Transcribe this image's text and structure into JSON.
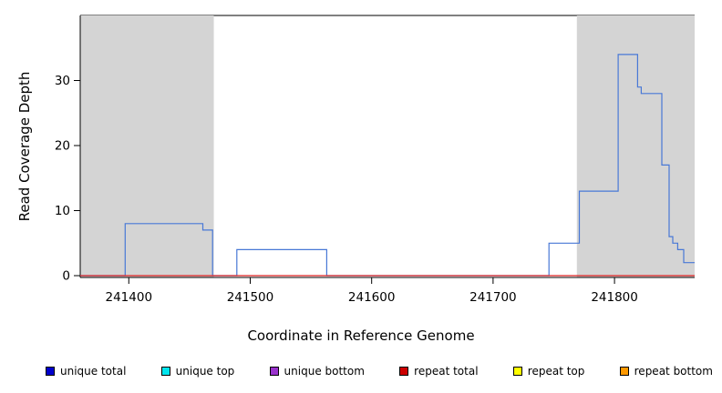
{
  "chart_data": {
    "type": "line",
    "title": "",
    "xlabel": "Coordinate in Reference Genome",
    "ylabel": "Read Coverage Depth",
    "xlim": [
      241360,
      241866
    ],
    "ylim": [
      0,
      40
    ],
    "xticks": [
      241400,
      241500,
      241600,
      241700,
      241800
    ],
    "yticks": [
      0,
      10,
      20,
      30
    ],
    "grid": false,
    "legend_position": "bottom",
    "shaded_regions": [
      {
        "x0": 241360,
        "x1": 241470,
        "color": "#d4d4d4"
      },
      {
        "x0": 241769,
        "x1": 241866,
        "color": "#d4d4d4"
      }
    ],
    "series": [
      {
        "name": "unique-total-coverage",
        "color": "#4878d6",
        "type": "step",
        "points": [
          [
            241360,
            0
          ],
          [
            241397,
            0
          ],
          [
            241397,
            8
          ],
          [
            241461,
            8
          ],
          [
            241461,
            7
          ],
          [
            241469,
            7
          ],
          [
            241469,
            0
          ],
          [
            241489,
            0
          ],
          [
            241489,
            4
          ],
          [
            241563,
            4
          ],
          [
            241563,
            0
          ],
          [
            241746,
            0
          ],
          [
            241746,
            5
          ],
          [
            241771,
            5
          ],
          [
            241771,
            13
          ],
          [
            241803,
            13
          ],
          [
            241803,
            34
          ],
          [
            241819,
            34
          ],
          [
            241819,
            29
          ],
          [
            241822,
            29
          ],
          [
            241822,
            28
          ],
          [
            241839,
            28
          ],
          [
            241839,
            17
          ],
          [
            241845,
            17
          ],
          [
            241845,
            6
          ],
          [
            241848,
            6
          ],
          [
            241848,
            5
          ],
          [
            241852,
            5
          ],
          [
            241852,
            4
          ],
          [
            241857,
            4
          ],
          [
            241857,
            2
          ],
          [
            241866,
            2
          ]
        ]
      },
      {
        "name": "repeat-total-coverage",
        "color": "#dd2222",
        "type": "step",
        "points": [
          [
            241360,
            0
          ],
          [
            241866,
            0
          ]
        ]
      }
    ],
    "legend": [
      {
        "label": "unique total",
        "color": "#0000cd"
      },
      {
        "label": "unique top",
        "color": "#00e5ee"
      },
      {
        "label": "unique bottom",
        "color": "#9932cc"
      },
      {
        "label": "repeat total",
        "color": "#cd0000"
      },
      {
        "label": "repeat top",
        "color": "#ffff00"
      },
      {
        "label": "repeat bottom",
        "color": "#ff9900"
      }
    ]
  }
}
